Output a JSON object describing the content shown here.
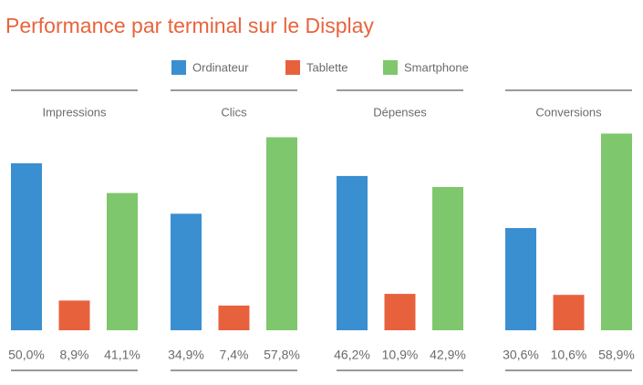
{
  "title": "Performance par terminal sur le Display",
  "legend": [
    {
      "name": "Ordinateur",
      "color": "#3a8fd0"
    },
    {
      "name": "Tablette",
      "color": "#e8613d"
    },
    {
      "name": "Smartphone",
      "color": "#7ec76d"
    }
  ],
  "chart_data": [
    {
      "type": "bar",
      "title": "Impressions",
      "values": [
        50.0,
        8.9,
        41.1
      ],
      "value_labels": [
        "50,0%",
        "8,9%",
        "41,1%"
      ]
    },
    {
      "type": "bar",
      "title": "Clics",
      "values": [
        34.9,
        7.4,
        57.8
      ],
      "value_labels": [
        "34,9%",
        "7,4%",
        "57,8%"
      ]
    },
    {
      "type": "bar",
      "title": "Dépenses",
      "values": [
        46.2,
        10.9,
        42.9
      ],
      "value_labels": [
        "46,2%",
        "10,9%",
        "42,9%"
      ]
    },
    {
      "type": "bar",
      "title": "Conversions",
      "values": [
        30.6,
        10.6,
        58.9
      ],
      "value_labels": [
        "30,6%",
        "10,6%",
        "58,9%"
      ]
    }
  ]
}
